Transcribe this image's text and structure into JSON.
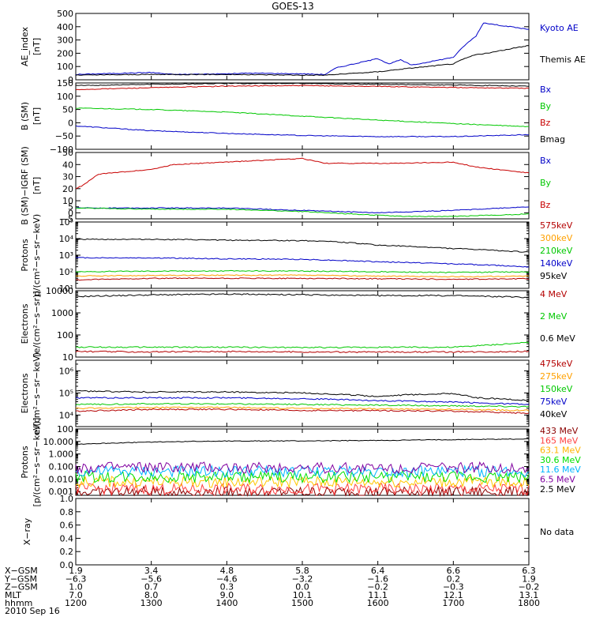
{
  "title": "GOES-13",
  "chart_data": [
    {
      "type": "line",
      "ylabel_lines": [
        "AE_index",
        "[nT]"
      ],
      "ylim": [
        0,
        500
      ],
      "yscale": "linear",
      "yticks": [
        0,
        100,
        200,
        300,
        400,
        500
      ],
      "ytick_labels": [
        "0",
        "100",
        "200",
        "300",
        "400",
        "500"
      ],
      "series": [
        {
          "name": "Kyoto AE",
          "color": "#0000c8",
          "x": [
            1200,
            1230,
            1300,
            1330,
            1400,
            1430,
            1500,
            1530,
            1545,
            1600,
            1615,
            1630,
            1645,
            1700,
            1715,
            1730,
            1740,
            1750,
            1800
          ],
          "y": [
            40,
            45,
            55,
            40,
            45,
            50,
            45,
            40,
            90,
            160,
            120,
            150,
            110,
            170,
            260,
            330,
            430,
            420,
            380
          ]
        },
        {
          "name": "Themis AE",
          "color": "#000000",
          "x": [
            1200,
            1300,
            1400,
            1500,
            1530,
            1600,
            1630,
            1700,
            1715,
            1730,
            1745,
            1800
          ],
          "y": [
            35,
            40,
            40,
            35,
            35,
            60,
            80,
            120,
            160,
            190,
            200,
            260
          ]
        }
      ]
    },
    {
      "type": "line",
      "ylabel_lines": [
        "B (SM)",
        "[nT]"
      ],
      "ylim": [
        -100,
        150
      ],
      "yscale": "linear",
      "yticks": [
        -100,
        -50,
        0,
        50,
        100,
        150
      ],
      "ytick_labels": [
        "−100",
        "−50",
        "0",
        "50",
        "100",
        "150"
      ],
      "series": [
        {
          "name": "Bx",
          "color": "#0000c8",
          "x": [
            1200,
            1300,
            1400,
            1500,
            1600,
            1700,
            1800
          ],
          "y": [
            -12,
            -30,
            -40,
            -48,
            -52,
            -52,
            -45
          ]
        },
        {
          "name": "By",
          "color": "#00c800",
          "x": [
            1200,
            1300,
            1400,
            1500,
            1600,
            1700,
            1800
          ],
          "y": [
            55,
            50,
            40,
            25,
            10,
            -3,
            -15
          ]
        },
        {
          "name": "Bz",
          "color": "#c80000",
          "x": [
            1200,
            1300,
            1400,
            1500,
            1600,
            1700,
            1800
          ],
          "y": [
            125,
            132,
            138,
            140,
            137,
            133,
            130
          ]
        },
        {
          "name": "Bmag",
          "color": "#000000",
          "x": [
            1200,
            1300,
            1400,
            1500,
            1600,
            1700,
            1800
          ],
          "y": [
            140,
            145,
            148,
            148,
            145,
            142,
            138
          ]
        }
      ]
    },
    {
      "type": "line",
      "ylabel_lines": [
        "B (SM)−IGRF (SM)",
        "[nT]"
      ],
      "ylim": [
        -5,
        50
      ],
      "yscale": "linear",
      "yticks": [
        0,
        10,
        20,
        30,
        40,
        50
      ],
      "ytick_labels": [
        "0",
        "10",
        "20",
        "30",
        "40",
        "50"
      ],
      "extra_tick_labels": [
        {
          "value": -5,
          "label": "−5"
        },
        {
          "value": 5,
          "label": "5"
        }
      ],
      "series": [
        {
          "name": "Bx",
          "color": "#0000c8",
          "x": [
            1200,
            1300,
            1400,
            1500,
            1600,
            1700,
            1800
          ],
          "y": [
            4,
            4,
            4,
            2,
            0,
            2,
            5
          ]
        },
        {
          "name": "By",
          "color": "#00c800",
          "x": [
            1200,
            1300,
            1400,
            1500,
            1600,
            1630,
            1700,
            1800
          ],
          "y": [
            4,
            3,
            3,
            1,
            -2,
            -3,
            -3,
            -1
          ]
        },
        {
          "name": "Bz",
          "color": "#c80000",
          "x": [
            1200,
            1210,
            1230,
            1300,
            1330,
            1400,
            1430,
            1500,
            1530,
            1600,
            1630,
            1700,
            1730,
            1800
          ],
          "y": [
            20,
            23,
            32,
            36,
            40,
            42,
            43,
            45,
            41,
            41,
            41,
            42,
            38,
            33
          ]
        }
      ]
    },
    {
      "type": "line",
      "ylabel_lines": [
        "Protons",
        "p/(cm²−s−sr−keV)"
      ],
      "ylim": [
        10,
        100000
      ],
      "yscale": "log",
      "yticks": [
        10,
        100,
        1000,
        10000,
        100000
      ],
      "ytick_labels": [
        "10¹",
        "10²",
        "10³",
        "10⁴",
        "10⁵"
      ],
      "series": [
        {
          "name": "575keV",
          "color": "#b40000",
          "x": [
            1200,
            1300,
            1400,
            1500,
            1600,
            1700,
            1800
          ],
          "y": [
            32,
            40,
            40,
            40,
            38,
            35,
            38
          ]
        },
        {
          "name": "300keV",
          "color": "#ffa000",
          "x": [
            1200,
            1300,
            1400,
            1500,
            1600,
            1700,
            1800
          ],
          "y": [
            55,
            60,
            62,
            62,
            55,
            50,
            55
          ]
        },
        {
          "name": "210keV",
          "color": "#00c800",
          "x": [
            1200,
            1300,
            1400,
            1500,
            1600,
            1700,
            1800
          ],
          "y": [
            100,
            110,
            112,
            110,
            100,
            90,
            100
          ]
        },
        {
          "name": "140keV",
          "color": "#0000c8",
          "x": [
            1200,
            1300,
            1400,
            1500,
            1600,
            1700,
            1800
          ],
          "y": [
            700,
            680,
            600,
            560,
            400,
            300,
            200
          ]
        },
        {
          "name": "95keV",
          "color": "#000000",
          "x": [
            1200,
            1300,
            1400,
            1500,
            1530,
            1600,
            1700,
            1800
          ],
          "y": [
            9000,
            9000,
            8000,
            7500,
            7000,
            4000,
            2500,
            1500
          ]
        }
      ]
    },
    {
      "type": "line",
      "ylabel_lines": [
        "Electrons",
        "[e/(cm²−s−sr)]"
      ],
      "ylim": [
        10,
        10000
      ],
      "yscale": "log",
      "yticks": [
        10,
        100,
        1000,
        10000
      ],
      "ytick_labels": [
        "10",
        "100",
        "1000",
        "10000"
      ],
      "series": [
        {
          "name": "4 MeV",
          "color": "#b40000",
          "x": [
            1200,
            1300,
            1400,
            1500,
            1600,
            1700,
            1800
          ],
          "y": [
            18,
            17,
            18,
            17,
            17,
            17,
            18
          ]
        },
        {
          "name": "2 MeV",
          "color": "#00c800",
          "x": [
            1200,
            1300,
            1400,
            1500,
            1600,
            1700,
            1730,
            1800
          ],
          "y": [
            28,
            28,
            28,
            27,
            28,
            28,
            32,
            45
          ]
        },
        {
          "name": "0.6 MeV",
          "color": "#000000",
          "x": [
            1200,
            1300,
            1400,
            1500,
            1600,
            1700,
            1800
          ],
          "y": [
            5500,
            6500,
            7000,
            6500,
            6000,
            6000,
            5000
          ]
        }
      ]
    },
    {
      "type": "line",
      "ylabel_lines": [
        "Electrons",
        "e/(cm²−s−sr−keV)"
      ],
      "ylim": [
        3000,
        3000000
      ],
      "yscale": "log",
      "yticks": [
        10000,
        100000,
        1000000
      ],
      "ytick_labels": [
        "10⁴",
        "10⁵",
        "10⁶"
      ],
      "series": [
        {
          "name": "475keV",
          "color": "#b40000",
          "x": [
            1200,
            1300,
            1400,
            1500,
            1600,
            1700,
            1800
          ],
          "y": [
            15000,
            18000,
            18000,
            16000,
            16000,
            15000,
            12000
          ]
        },
        {
          "name": "275keV",
          "color": "#ffa000",
          "x": [
            1200,
            1300,
            1400,
            1500,
            1600,
            1700,
            1800
          ],
          "y": [
            20000,
            22000,
            22000,
            20000,
            19000,
            18000,
            16000
          ]
        },
        {
          "name": "150keV",
          "color": "#00c800",
          "x": [
            1200,
            1300,
            1400,
            1500,
            1600,
            1700,
            1800
          ],
          "y": [
            30000,
            32000,
            32000,
            30000,
            28000,
            26000,
            24000
          ]
        },
        {
          "name": "75keV",
          "color": "#0000c8",
          "x": [
            1200,
            1300,
            1400,
            1500,
            1600,
            1700,
            1800
          ],
          "y": [
            60000,
            60000,
            60000,
            55000,
            45000,
            38000,
            30000
          ]
        },
        {
          "name": "40keV",
          "color": "#000000",
          "x": [
            1200,
            1300,
            1400,
            1500,
            1600,
            1630,
            1700,
            1730,
            1800
          ],
          "y": [
            120000,
            110000,
            110000,
            100000,
            70000,
            80000,
            95000,
            60000,
            45000
          ]
        }
      ]
    },
    {
      "type": "line",
      "ylabel_lines": [
        "Protons",
        "[p/(cm²−s−sr−keV)]"
      ],
      "ylim": [
        0.0005,
        100
      ],
      "yscale": "log",
      "yticks": [
        0.001,
        0.01,
        0.1,
        1,
        10,
        100
      ],
      "ytick_labels": [
        "0.001",
        "0.010",
        "0.100",
        "1.000",
        "10.000",
        "100"
      ],
      "series": [
        {
          "name": "433 MeV",
          "color": "#8b0000",
          "x": [
            1200,
            1800
          ],
          "y": [
            0.0009,
            0.0009
          ]
        },
        {
          "name": "165 MeV",
          "color": "#ff4040",
          "x": [
            1200,
            1800
          ],
          "y": [
            0.0016,
            0.0016
          ]
        },
        {
          "name": "63.1 MeV",
          "color": "#ffc800",
          "x": [
            1200,
            1800
          ],
          "y": [
            0.006,
            0.006
          ]
        },
        {
          "name": "30.6 MeV",
          "color": "#00e000",
          "x": [
            1200,
            1800
          ],
          "y": [
            0.015,
            0.015
          ]
        },
        {
          "name": "11.6 MeV",
          "color": "#00b4ff",
          "x": [
            1200,
            1800
          ],
          "y": [
            0.04,
            0.04
          ]
        },
        {
          "name": "6.5 MeV",
          "color": "#8000a0",
          "x": [
            1200,
            1800
          ],
          "y": [
            0.08,
            0.08
          ]
        },
        {
          "name": "2.5 MeV",
          "color": "#000000",
          "x": [
            1200,
            1300,
            1400,
            1500,
            1600,
            1700,
            1800
          ],
          "y": [
            6,
            9,
            11,
            11,
            12,
            14,
            16
          ]
        }
      ]
    },
    {
      "type": "line",
      "ylabel_lines": [
        "X−ray"
      ],
      "ylim": [
        0,
        1
      ],
      "yscale": "linear",
      "yticks": [
        0,
        0.2,
        0.4,
        0.6,
        0.8,
        1.0
      ],
      "ytick_labels": [
        "0.0",
        "0.2",
        "0.4",
        "0.6",
        "0.8",
        "1.0"
      ],
      "legend_note": "No data",
      "series": []
    }
  ],
  "x_axis": {
    "range": [
      1200,
      1800
    ],
    "ticks": [
      1200,
      1300,
      1400,
      1500,
      1600,
      1700,
      1800
    ],
    "rows": [
      {
        "label": "X−GSM",
        "values": [
          "1.9",
          "3.4",
          "4.8",
          "5.8",
          "6.4",
          "6.6",
          "6.3"
        ]
      },
      {
        "label": "Y−GSM",
        "values": [
          "−6.3",
          "−5.6",
          "−4.6",
          "−3.2",
          "−1.6",
          "0.2",
          "1.9"
        ]
      },
      {
        "label": "Z−GSM",
        "values": [
          "1.0",
          "0.7",
          "0.3",
          "0.0",
          "−0.2",
          "−0.3",
          "−0.2"
        ]
      },
      {
        "label": "MLT",
        "values": [
          "7.0",
          "8.0",
          "9.0",
          "10.1",
          "11.1",
          "12.1",
          "13.1"
        ]
      },
      {
        "label": "hhmm",
        "values": [
          "1200",
          "1300",
          "1400",
          "1500",
          "1600",
          "1700",
          "1800"
        ]
      }
    ],
    "date": "2010 Sep 16"
  }
}
